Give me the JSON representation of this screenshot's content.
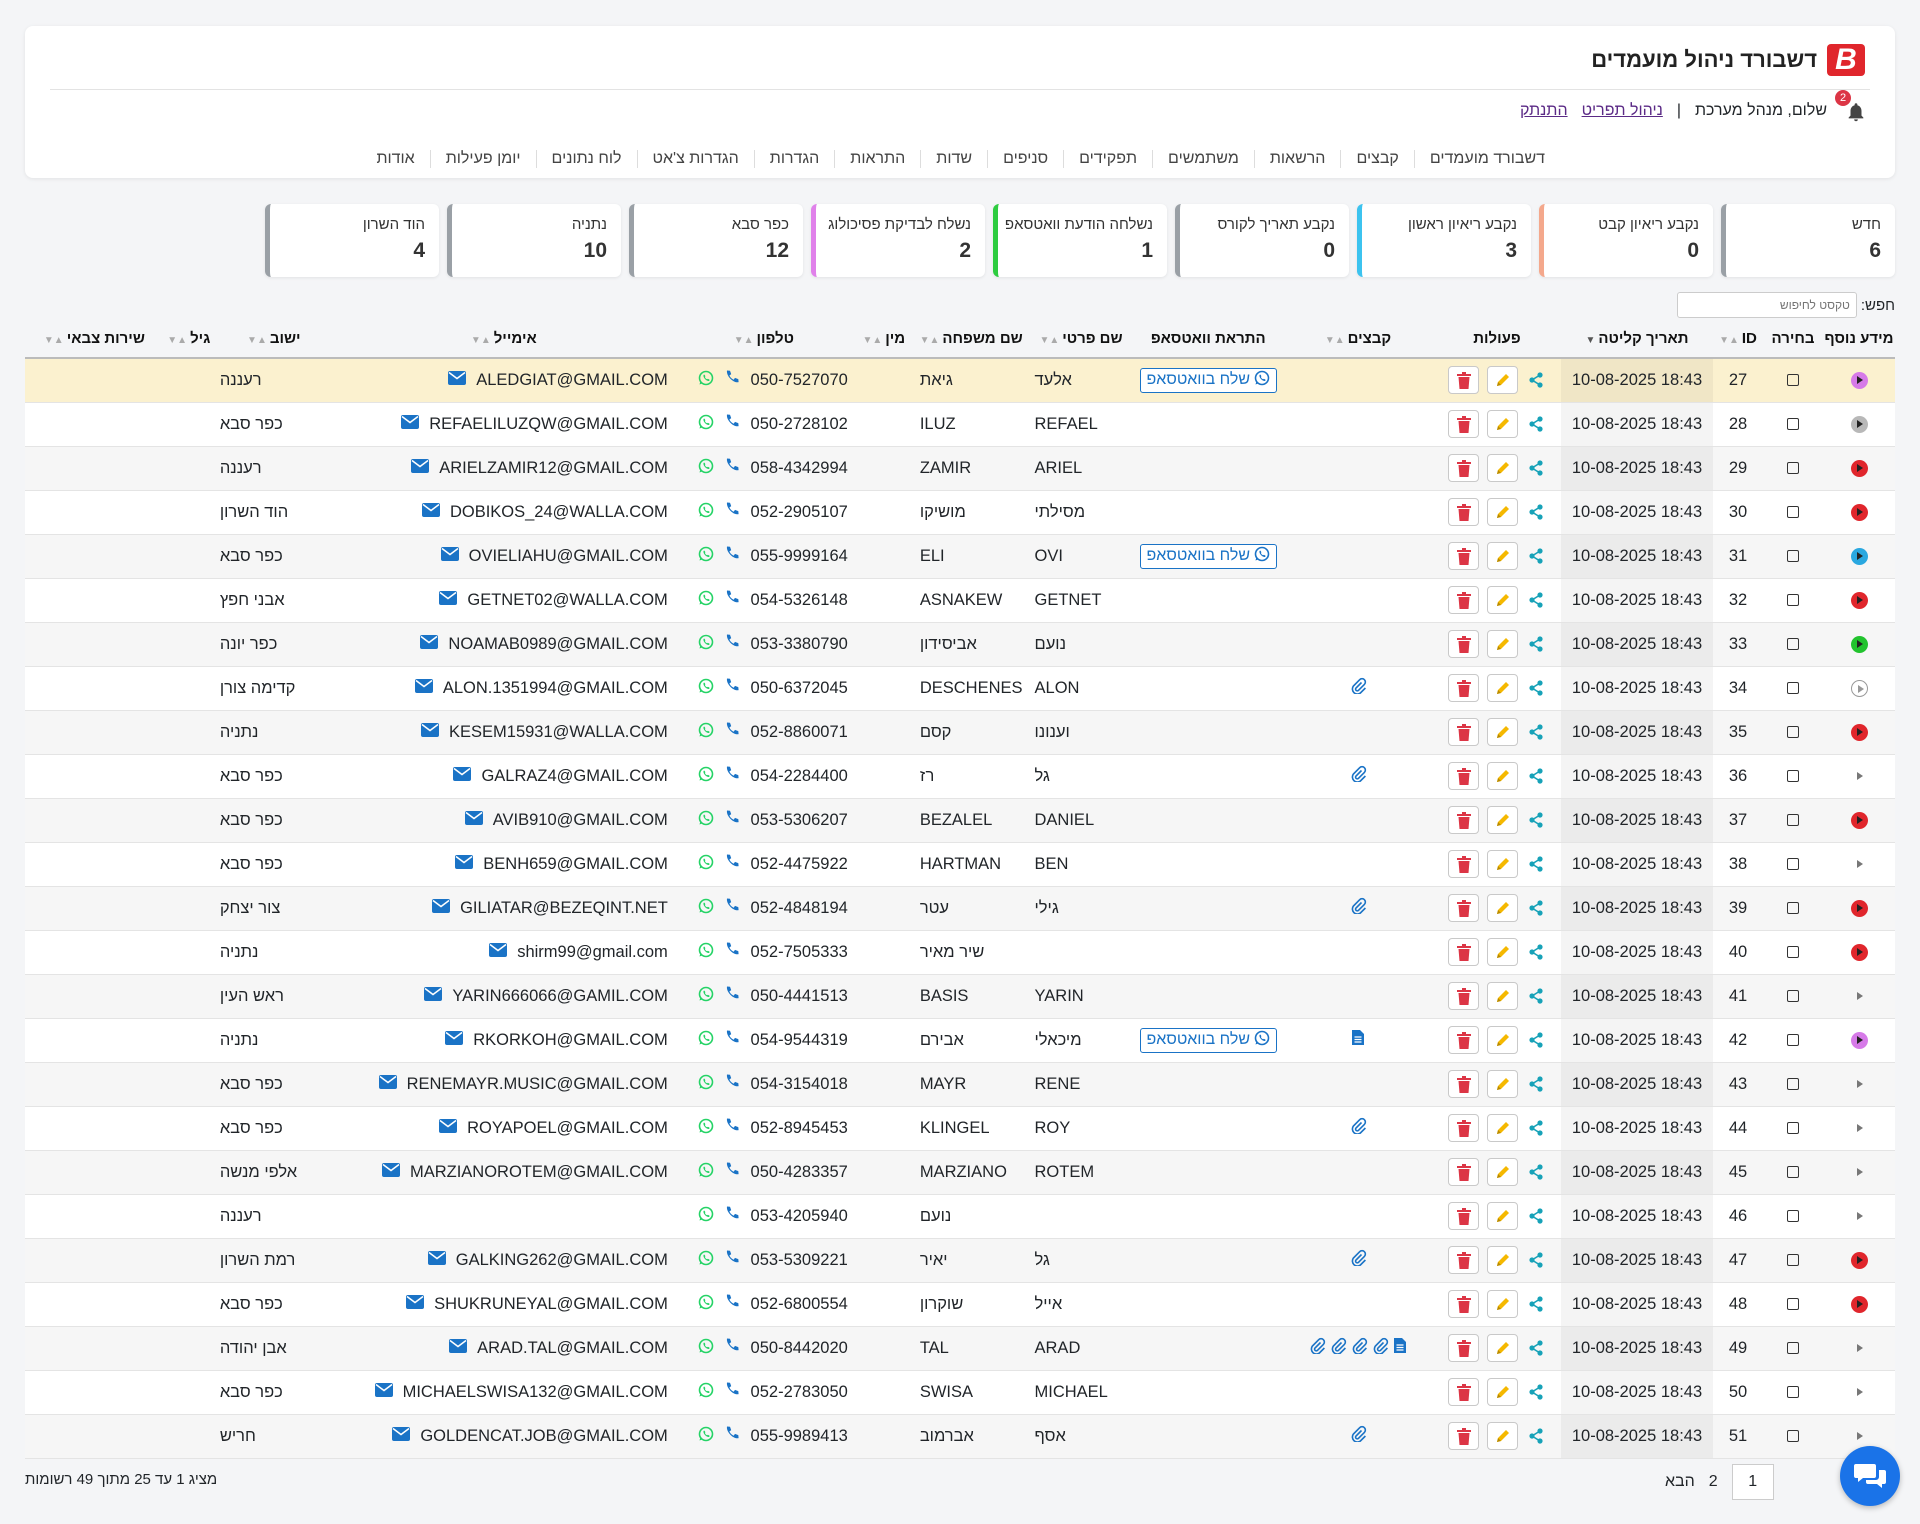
{
  "app": {
    "logo_letter": "B",
    "title": "דשבורד ניהול מועמדים",
    "greeting": "שלום, מנהל מערכת",
    "separator": "|",
    "profile_link": "ניהול תפריט",
    "logout_link": "התנתק",
    "notification_count": "2"
  },
  "nav": [
    "דשבורד מועמדים",
    "קבצים",
    "הרשאות",
    "משתמשים",
    "תפקידים",
    "סניפים",
    "שדות",
    "התראות",
    "הגדרות",
    "הגדרות צ'אט",
    "לוח נתונים",
    "יומן פעילות",
    "אודות"
  ],
  "stats": [
    {
      "label": "חדש",
      "count": "6",
      "color": "#9aa0a6"
    },
    {
      "label": "נקבע ריאיון קבט",
      "count": "0",
      "color": "#f4a88c"
    },
    {
      "label": "נקבע ריאיון ראשון",
      "count": "3",
      "color": "#3cc3ef"
    },
    {
      "label": "נקבע תאריך לקורס",
      "count": "0",
      "color": "#9aa0a6"
    },
    {
      "label": "נשלחה הודעת וואטסאפ",
      "count": "1",
      "color": "#2ecc40"
    },
    {
      "label": "נשלח לבדיקת פסיכולוג",
      "count": "2",
      "color": "#e081ea"
    },
    {
      "label": "כפר סבא",
      "count": "12",
      "color": "#9aa0a6"
    },
    {
      "label": "נתניה",
      "count": "10",
      "color": "#9aa0a6"
    },
    {
      "label": "הוד השרון",
      "count": "4",
      "color": "#9aa0a6"
    }
  ],
  "search": {
    "label": "חפש:",
    "placeholder": "טקסט לחיפוש"
  },
  "table": {
    "headers": {
      "info": "מידע נוסף",
      "select": "בחירה",
      "id": "ID",
      "date": "תאריך קליטה",
      "actions": "פעולות",
      "files": "קבצים",
      "whatsapp": "התראת וואטסאפ",
      "first_name": "שם פרטי",
      "last_name": "שם משפחה",
      "gender": "מין",
      "phone": "טלפון",
      "email": "אימייל",
      "city": "ישוב",
      "age": "גיל",
      "army": "שירות צבאי"
    },
    "whatsapp_label": "שלח בוואטסאפ",
    "rows": [
      {
        "id": "27",
        "date": "10-08-2025 18:43",
        "status": "#d67ae8",
        "files": [],
        "wa": true,
        "first": "אלעד",
        "last": "גיאת",
        "phone": "050-7527070",
        "email": "ALEDGIAT@GMAIL.COM",
        "city": "רעננה",
        "highlight": true
      },
      {
        "id": "28",
        "date": "10-08-2025 18:43",
        "status": "#b8b8b8",
        "files": [],
        "wa": false,
        "first": "REFAEL",
        "last": "ILUZ",
        "phone": "050-2728102",
        "email": "REFAELILUZQW@GMAIL.COM",
        "city": "כפר סבא"
      },
      {
        "id": "29",
        "date": "10-08-2025 18:43",
        "status": "#e0262c",
        "files": [],
        "wa": false,
        "first": "ARIEL",
        "last": "ZAMIR",
        "phone": "058-4342994",
        "email": "ARIELZAMIR12@GMAIL.COM",
        "city": "רעננה"
      },
      {
        "id": "30",
        "date": "10-08-2025 18:43",
        "status": "#e0262c",
        "files": [],
        "wa": false,
        "first": "מסילתי",
        "last": "מושיקו",
        "phone": "052-2905107",
        "email": "DOBIKOS_24@WALLA.COM",
        "city": "הוד השרון"
      },
      {
        "id": "31",
        "date": "10-08-2025 18:43",
        "status": "#2aa8e0",
        "files": [],
        "wa": true,
        "first": "OVI",
        "last": "ELI",
        "phone": "055-9999164",
        "email": "OVIELIAHU@GMAIL.COM",
        "city": "כפר סבא"
      },
      {
        "id": "32",
        "date": "10-08-2025 18:43",
        "status": "#e0262c",
        "files": [],
        "wa": false,
        "first": "GETNET",
        "last": "ASNAKEW",
        "phone": "054-5326148",
        "email": "GETNET02@WALLA.COM",
        "city": "אבני חפץ"
      },
      {
        "id": "33",
        "date": "10-08-2025 18:43",
        "status": "#22c32e",
        "files": [],
        "wa": false,
        "first": "נועם",
        "last": "אביסידון",
        "phone": "053-3380790",
        "email": "NOAMAB0989@GMAIL.COM",
        "city": "כפר יונה"
      },
      {
        "id": "34",
        "date": "10-08-2025 18:43",
        "status": "outline",
        "files": [
          "clip"
        ],
        "wa": false,
        "first": "ALON",
        "last": "DESCHENES",
        "phone": "050-6372045",
        "email": "ALON.1351994@GMAIL.COM",
        "city": "קדימה צורן"
      },
      {
        "id": "35",
        "date": "10-08-2025 18:43",
        "status": "#e0262c",
        "files": [],
        "wa": false,
        "first": "וענונו",
        "last": "קסם",
        "phone": "052-8860071",
        "email": "KESEM15931@WALLA.COM",
        "city": "נתניה"
      },
      {
        "id": "36",
        "date": "10-08-2025 18:43",
        "status": "none",
        "files": [
          "clip"
        ],
        "wa": false,
        "first": "גל",
        "last": "רז",
        "phone": "054-2284400",
        "email": "GALRAZ4@GMAIL.COM",
        "city": "כפר סבא"
      },
      {
        "id": "37",
        "date": "10-08-2025 18:43",
        "status": "#e0262c",
        "files": [],
        "wa": false,
        "first": "DANIEL",
        "last": "BEZALEL",
        "phone": "053-5306207",
        "email": "AVIB910@GMAIL.COM",
        "city": "כפר סבא"
      },
      {
        "id": "38",
        "date": "10-08-2025 18:43",
        "status": "none",
        "files": [],
        "wa": false,
        "first": "BEN",
        "last": "HARTMAN",
        "phone": "052-4475922",
        "email": "BENH659@GMAIL.COM",
        "city": "כפר סבא"
      },
      {
        "id": "39",
        "date": "10-08-2025 18:43",
        "status": "#e0262c",
        "files": [
          "clip"
        ],
        "wa": false,
        "first": "גילי",
        "last": "עטר",
        "phone": "052-4848194",
        "email": "GILIATAR@BEZEQINT.NET",
        "city": "צור יצחק"
      },
      {
        "id": "40",
        "date": "10-08-2025 18:43",
        "status": "#e0262c",
        "files": [],
        "wa": false,
        "first": "",
        "last": "שיר מאיר",
        "phone": "052-7505333",
        "email": "shirm99@gmail.com",
        "city": "נתניה"
      },
      {
        "id": "41",
        "date": "10-08-2025 18:43",
        "status": "none",
        "files": [],
        "wa": false,
        "first": "YARIN",
        "last": "BASIS",
        "phone": "050-4441513",
        "email": "YARIN666066@GAMIL.COM",
        "city": "ראש העין"
      },
      {
        "id": "42",
        "date": "10-08-2025 18:43",
        "status": "#d67ae8",
        "files": [
          "doc"
        ],
        "wa": true,
        "first": "מיכאלי",
        "last": "אבירם",
        "phone": "054-9544319",
        "email": "RKORKOH@GMAIL.COM",
        "city": "נתניה"
      },
      {
        "id": "43",
        "date": "10-08-2025 18:43",
        "status": "none",
        "files": [],
        "wa": false,
        "first": "RENE",
        "last": "MAYR",
        "phone": "054-3154018",
        "email": "RENEMAYR.MUSIC@GMAIL.COM",
        "city": "כפר סבא"
      },
      {
        "id": "44",
        "date": "10-08-2025 18:43",
        "status": "none",
        "files": [
          "clip"
        ],
        "wa": false,
        "first": "ROY",
        "last": "KLINGEL",
        "phone": "052-8945453",
        "email": "ROYAPOEL@GMAIL.COM",
        "city": "כפר סבא"
      },
      {
        "id": "45",
        "date": "10-08-2025 18:43",
        "status": "none",
        "files": [],
        "wa": false,
        "first": "ROTEM",
        "last": "MARZIANO",
        "phone": "050-4283357",
        "email": "MARZIANOROTEM@GMAIL.COM",
        "city": "אלפי מנשה"
      },
      {
        "id": "46",
        "date": "10-08-2025 18:43",
        "status": "none",
        "files": [],
        "wa": false,
        "first": "",
        "last": "נועם",
        "phone": "053-4205940",
        "email": "",
        "city": "רעננה"
      },
      {
        "id": "47",
        "date": "10-08-2025 18:43",
        "status": "#e0262c",
        "files": [
          "clip"
        ],
        "wa": false,
        "first": "גל",
        "last": "יאיר",
        "phone": "053-5309221",
        "email": "GALKING262@GMAIL.COM",
        "city": "רמת השרון"
      },
      {
        "id": "48",
        "date": "10-08-2025 18:43",
        "status": "#e0262c",
        "files": [],
        "wa": false,
        "first": "אייל",
        "last": "שוקרון",
        "phone": "052-6800554",
        "email": "SHUKRUNEYAL@GMAIL.COM",
        "city": "כפר סבא"
      },
      {
        "id": "49",
        "date": "10-08-2025 18:43",
        "status": "none",
        "files": [
          "doc",
          "clip",
          "clip",
          "clip",
          "clip"
        ],
        "wa": false,
        "first": "ARAD",
        "last": "TAL",
        "phone": "050-8442020",
        "email": "ARAD.TAL@GMAIL.COM",
        "city": "אבן יהודה"
      },
      {
        "id": "50",
        "date": "10-08-2025 18:43",
        "status": "none",
        "files": [],
        "wa": false,
        "first": "MICHAEL",
        "last": "SWISA",
        "phone": "052-2783050",
        "email": "MICHAELSWISA132@GMAIL.COM",
        "city": "כפר סבא"
      },
      {
        "id": "51",
        "date": "10-08-2025 18:43",
        "status": "none",
        "files": [
          "clip"
        ],
        "wa": false,
        "first": "אסף",
        "last": "אברמוב",
        "phone": "055-9989413",
        "email": "GOLDENCAT.JOB@GMAIL.COM",
        "city": "חריש"
      }
    ]
  },
  "pagination": {
    "page1": "1",
    "page2": "2",
    "next": "הבא"
  },
  "summary": "מציג 1 עד 25 מתוך 49 רשומות",
  "icons": {
    "logo": "logo-icon",
    "bell": "bell-icon",
    "share": "share-icon",
    "edit": "pencil-icon",
    "delete": "trash-icon",
    "whatsapp": "whatsapp-icon",
    "phone": "phone-icon",
    "email": "envelope-icon",
    "clip": "paperclip-icon",
    "doc": "document-icon",
    "chat": "chat-icon"
  },
  "colors": {
    "delete": "#dc3545",
    "edit": "#f5b800",
    "share": "#17a2b8",
    "link": "#1a73c6",
    "whatsapp": "#25d366"
  }
}
